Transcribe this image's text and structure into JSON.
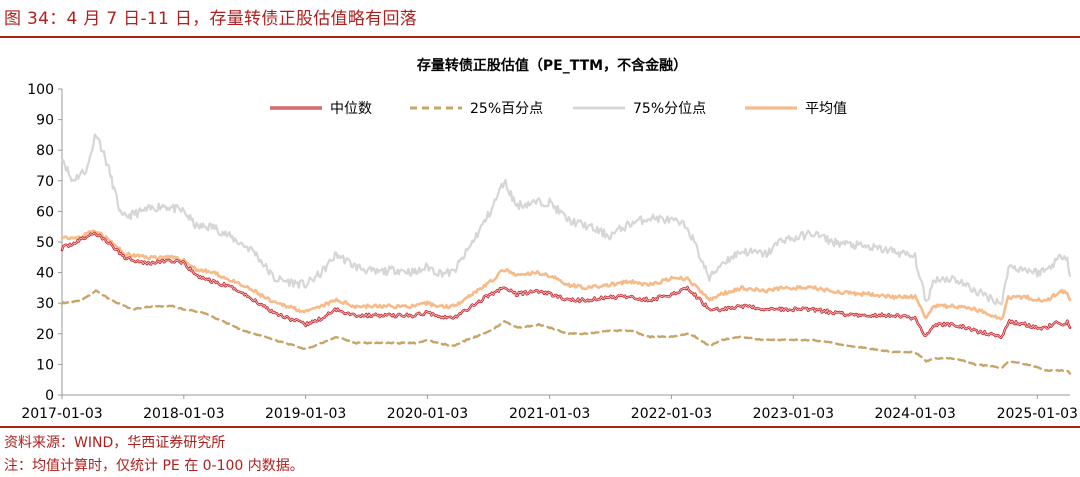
{
  "figure_title": "图 34：4 月 7 日-11 日，存量转债正股估值略有回落",
  "source_note": "资料来源：WIND，华西证券研究所",
  "footnote": "注：均值计算时，仅统计 PE 在 0-100 内数据。",
  "colors": {
    "brand_red": "#b0201e",
    "median": "#c0141c",
    "p25": "#c9a468",
    "p75": "#d6d6d6",
    "mean": "#f7bb8a"
  },
  "chart_data": {
    "type": "line",
    "title": "存量转债正股估值（PE_TTM，不含金融）",
    "xlabel": "",
    "ylabel": "",
    "ylim": [
      0,
      100
    ],
    "yticks": [
      0,
      10,
      20,
      30,
      40,
      50,
      60,
      70,
      80,
      90,
      100
    ],
    "xlim": [
      "2017-01-03",
      "2025-04-11"
    ],
    "xticks": [
      "2017-01-03",
      "2018-01-03",
      "2019-01-03",
      "2020-01-03",
      "2021-01-03",
      "2022-01-03",
      "2023-01-03",
      "2024-01-03",
      "2025-01-03"
    ],
    "grid": false,
    "legend_position": "top",
    "series": [
      {
        "name": "中位数",
        "style": "double-red",
        "points": [
          [
            "2017-01-03",
            48
          ],
          [
            "2017-02-15",
            50
          ],
          [
            "2017-04-10",
            53
          ],
          [
            "2017-05-20",
            50
          ],
          [
            "2017-07-10",
            45
          ],
          [
            "2017-09-15",
            43
          ],
          [
            "2017-11-20",
            44
          ],
          [
            "2018-01-03",
            43
          ],
          [
            "2018-02-10",
            39
          ],
          [
            "2018-04-01",
            37
          ],
          [
            "2018-06-01",
            35
          ],
          [
            "2018-08-01",
            31
          ],
          [
            "2018-10-01",
            27
          ],
          [
            "2018-11-15",
            25
          ],
          [
            "2019-01-03",
            23
          ],
          [
            "2019-02-20",
            25
          ],
          [
            "2019-04-05",
            28
          ],
          [
            "2019-06-01",
            26
          ],
          [
            "2019-08-01",
            26
          ],
          [
            "2019-10-01",
            26
          ],
          [
            "2019-12-01",
            26
          ],
          [
            "2020-01-03",
            27
          ],
          [
            "2020-02-04",
            26
          ],
          [
            "2020-03-20",
            25
          ],
          [
            "2020-05-01",
            28
          ],
          [
            "2020-07-10",
            33
          ],
          [
            "2020-08-20",
            35
          ],
          [
            "2020-09-25",
            33
          ],
          [
            "2020-12-01",
            34
          ],
          [
            "2021-01-03",
            33
          ],
          [
            "2021-03-01",
            31
          ],
          [
            "2021-05-01",
            31
          ],
          [
            "2021-07-01",
            32
          ],
          [
            "2021-09-01",
            32
          ],
          [
            "2021-11-01",
            31
          ],
          [
            "2022-01-03",
            33
          ],
          [
            "2022-02-20",
            35
          ],
          [
            "2022-04-27",
            28
          ],
          [
            "2022-06-01",
            28
          ],
          [
            "2022-08-01",
            29
          ],
          [
            "2022-10-15",
            28
          ],
          [
            "2022-12-01",
            28
          ],
          [
            "2023-01-03",
            28
          ],
          [
            "2023-03-01",
            28
          ],
          [
            "2023-05-01",
            27
          ],
          [
            "2023-07-01",
            26
          ],
          [
            "2023-09-01",
            26
          ],
          [
            "2023-11-01",
            26
          ],
          [
            "2024-01-03",
            25
          ],
          [
            "2024-02-05",
            19
          ],
          [
            "2024-03-01",
            23
          ],
          [
            "2024-05-01",
            23
          ],
          [
            "2024-07-01",
            21
          ],
          [
            "2024-09-20",
            19
          ],
          [
            "2024-10-08",
            24
          ],
          [
            "2024-12-01",
            23
          ],
          [
            "2025-01-03",
            22
          ],
          [
            "2025-02-01",
            22
          ],
          [
            "2025-03-01",
            24
          ],
          [
            "2025-03-25",
            23
          ],
          [
            "2025-04-03",
            24
          ],
          [
            "2025-04-11",
            22
          ]
        ]
      },
      {
        "name": "25%百分点",
        "style": "dashed",
        "points": [
          [
            "2017-01-03",
            30
          ],
          [
            "2017-03-01",
            31
          ],
          [
            "2017-04-15",
            34
          ],
          [
            "2017-06-01",
            31
          ],
          [
            "2017-08-01",
            28
          ],
          [
            "2017-10-01",
            29
          ],
          [
            "2017-12-01",
            29
          ],
          [
            "2018-01-03",
            28
          ],
          [
            "2018-03-01",
            27
          ],
          [
            "2018-05-01",
            24
          ],
          [
            "2018-07-01",
            21
          ],
          [
            "2018-09-01",
            19
          ],
          [
            "2018-11-01",
            17
          ],
          [
            "2019-01-03",
            15
          ],
          [
            "2019-02-20",
            17
          ],
          [
            "2019-04-05",
            19
          ],
          [
            "2019-06-01",
            17
          ],
          [
            "2019-08-01",
            17
          ],
          [
            "2019-10-01",
            17
          ],
          [
            "2019-12-01",
            17
          ],
          [
            "2020-01-03",
            18
          ],
          [
            "2020-02-04",
            17
          ],
          [
            "2020-03-20",
            16
          ],
          [
            "2020-05-01",
            18
          ],
          [
            "2020-07-10",
            21
          ],
          [
            "2020-08-20",
            24
          ],
          [
            "2020-10-01",
            22
          ],
          [
            "2020-12-01",
            23
          ],
          [
            "2021-01-03",
            22
          ],
          [
            "2021-03-01",
            20
          ],
          [
            "2021-05-01",
            20
          ],
          [
            "2021-07-01",
            21
          ],
          [
            "2021-09-01",
            21
          ],
          [
            "2021-11-01",
            19
          ],
          [
            "2022-01-03",
            19
          ],
          [
            "2022-03-01",
            20
          ],
          [
            "2022-04-27",
            16
          ],
          [
            "2022-06-01",
            18
          ],
          [
            "2022-08-01",
            19
          ],
          [
            "2022-10-01",
            18
          ],
          [
            "2022-12-01",
            18
          ],
          [
            "2023-01-03",
            18
          ],
          [
            "2023-03-01",
            18
          ],
          [
            "2023-05-01",
            17
          ],
          [
            "2023-07-01",
            16
          ],
          [
            "2023-09-01",
            15
          ],
          [
            "2023-11-01",
            14
          ],
          [
            "2024-01-03",
            14
          ],
          [
            "2024-02-05",
            11
          ],
          [
            "2024-03-01",
            12
          ],
          [
            "2024-05-01",
            12
          ],
          [
            "2024-07-01",
            10
          ],
          [
            "2024-09-20",
            9
          ],
          [
            "2024-10-08",
            11
          ],
          [
            "2024-12-01",
            10
          ],
          [
            "2025-01-03",
            9
          ],
          [
            "2025-02-01",
            8
          ],
          [
            "2025-03-01",
            8
          ],
          [
            "2025-04-03",
            8
          ],
          [
            "2025-04-11",
            7
          ]
        ]
      },
      {
        "name": "75%分位点",
        "style": "grey",
        "points": [
          [
            "2017-01-03",
            78
          ],
          [
            "2017-02-01",
            70
          ],
          [
            "2017-03-20",
            74
          ],
          [
            "2017-04-15",
            86
          ],
          [
            "2017-05-20",
            75
          ],
          [
            "2017-07-01",
            58
          ],
          [
            "2017-09-01",
            60
          ],
          [
            "2017-11-01",
            62
          ],
          [
            "2018-01-03",
            60
          ],
          [
            "2018-02-10",
            55
          ],
          [
            "2018-04-01",
            55
          ],
          [
            "2018-06-01",
            51
          ],
          [
            "2018-08-01",
            47
          ],
          [
            "2018-10-01",
            38
          ],
          [
            "2018-11-15",
            37
          ],
          [
            "2019-01-03",
            36
          ],
          [
            "2019-02-20",
            40
          ],
          [
            "2019-04-05",
            46
          ],
          [
            "2019-06-01",
            42
          ],
          [
            "2019-08-01",
            40
          ],
          [
            "2019-10-01",
            41
          ],
          [
            "2019-12-01",
            40
          ],
          [
            "2020-01-03",
            42
          ],
          [
            "2020-02-04",
            40
          ],
          [
            "2020-03-20",
            40
          ],
          [
            "2020-05-01",
            47
          ],
          [
            "2020-07-10",
            60
          ],
          [
            "2020-08-20",
            70
          ],
          [
            "2020-09-25",
            62
          ],
          [
            "2020-12-01",
            63
          ],
          [
            "2021-01-03",
            63
          ],
          [
            "2021-03-01",
            57
          ],
          [
            "2021-05-01",
            55
          ],
          [
            "2021-07-01",
            52
          ],
          [
            "2021-09-01",
            56
          ],
          [
            "2021-11-01",
            58
          ],
          [
            "2022-01-03",
            57
          ],
          [
            "2022-02-20",
            55
          ],
          [
            "2022-04-27",
            38
          ],
          [
            "2022-06-01",
            43
          ],
          [
            "2022-08-01",
            47
          ],
          [
            "2022-10-15",
            46
          ],
          [
            "2022-12-01",
            51
          ],
          [
            "2023-01-03",
            51
          ],
          [
            "2023-03-01",
            53
          ],
          [
            "2023-05-01",
            50
          ],
          [
            "2023-07-01",
            49
          ],
          [
            "2023-09-01",
            48
          ],
          [
            "2023-11-01",
            47
          ],
          [
            "2024-01-03",
            45
          ],
          [
            "2024-02-05",
            30
          ],
          [
            "2024-03-01",
            38
          ],
          [
            "2024-05-01",
            38
          ],
          [
            "2024-07-01",
            34
          ],
          [
            "2024-09-20",
            30
          ],
          [
            "2024-10-08",
            42
          ],
          [
            "2024-12-01",
            41
          ],
          [
            "2025-01-03",
            40
          ],
          [
            "2025-02-01",
            41
          ],
          [
            "2025-03-01",
            44
          ],
          [
            "2025-03-25",
            46
          ],
          [
            "2025-04-03",
            45
          ],
          [
            "2025-04-11",
            39
          ]
        ]
      },
      {
        "name": "平均值",
        "style": "orange",
        "points": [
          [
            "2017-01-03",
            52
          ],
          [
            "2017-02-15",
            51
          ],
          [
            "2017-04-10",
            54
          ],
          [
            "2017-05-20",
            51
          ],
          [
            "2017-07-10",
            46
          ],
          [
            "2017-09-15",
            45
          ],
          [
            "2017-11-20",
            45
          ],
          [
            "2018-01-03",
            44
          ],
          [
            "2018-02-10",
            41
          ],
          [
            "2018-04-01",
            40
          ],
          [
            "2018-06-01",
            37
          ],
          [
            "2018-08-01",
            34
          ],
          [
            "2018-10-01",
            30
          ],
          [
            "2018-11-15",
            29
          ],
          [
            "2019-01-03",
            27
          ],
          [
            "2019-02-20",
            29
          ],
          [
            "2019-04-05",
            31
          ],
          [
            "2019-06-01",
            29
          ],
          [
            "2019-08-01",
            29
          ],
          [
            "2019-10-01",
            29
          ],
          [
            "2019-12-01",
            29
          ],
          [
            "2020-01-03",
            30
          ],
          [
            "2020-02-04",
            29
          ],
          [
            "2020-03-20",
            29
          ],
          [
            "2020-05-01",
            32
          ],
          [
            "2020-07-10",
            37
          ],
          [
            "2020-08-20",
            41
          ],
          [
            "2020-09-25",
            39
          ],
          [
            "2020-12-01",
            40
          ],
          [
            "2021-01-03",
            39
          ],
          [
            "2021-03-01",
            36
          ],
          [
            "2021-05-01",
            35
          ],
          [
            "2021-07-01",
            36
          ],
          [
            "2021-09-01",
            37
          ],
          [
            "2021-11-01",
            36
          ],
          [
            "2022-01-03",
            38
          ],
          [
            "2022-02-20",
            38
          ],
          [
            "2022-04-27",
            31
          ],
          [
            "2022-06-01",
            33
          ],
          [
            "2022-08-01",
            35
          ],
          [
            "2022-10-15",
            34
          ],
          [
            "2022-12-01",
            35
          ],
          [
            "2023-01-03",
            35
          ],
          [
            "2023-03-01",
            35
          ],
          [
            "2023-05-01",
            34
          ],
          [
            "2023-07-01",
            33
          ],
          [
            "2023-09-01",
            33
          ],
          [
            "2023-11-01",
            32
          ],
          [
            "2024-01-03",
            32
          ],
          [
            "2024-02-05",
            25
          ],
          [
            "2024-03-01",
            29
          ],
          [
            "2024-05-01",
            29
          ],
          [
            "2024-07-01",
            28
          ],
          [
            "2024-09-20",
            25
          ],
          [
            "2024-10-08",
            32
          ],
          [
            "2024-12-01",
            32
          ],
          [
            "2025-01-03",
            31
          ],
          [
            "2025-02-01",
            31
          ],
          [
            "2025-03-01",
            33
          ],
          [
            "2025-03-25",
            34
          ],
          [
            "2025-04-03",
            33
          ],
          [
            "2025-04-11",
            31
          ]
        ]
      }
    ]
  }
}
